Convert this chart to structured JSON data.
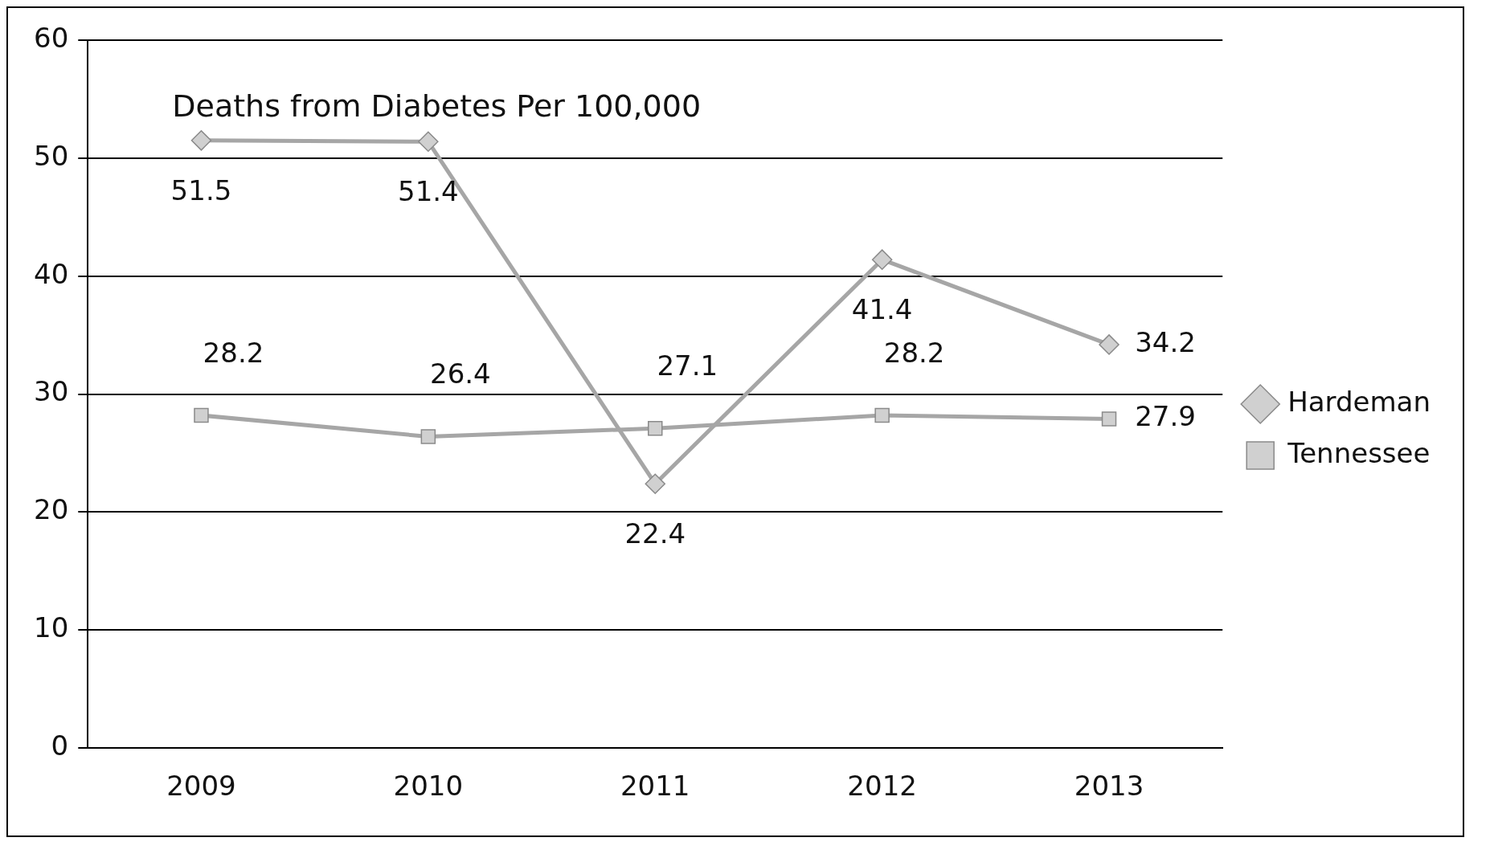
{
  "chart_data": {
    "type": "line",
    "title": "Deaths from Diabetes Per 100,000",
    "categories": [
      "2009",
      "2010",
      "2011",
      "2012",
      "2013"
    ],
    "series": [
      {
        "name": "Hardeman",
        "color": "#a6a6a6",
        "marker": "diamond",
        "values": [
          51.5,
          51.4,
          22.4,
          41.4,
          34.2
        ]
      },
      {
        "name": "Tennessee",
        "color": "#a6a6a6",
        "marker": "square",
        "values": [
          28.2,
          26.4,
          27.1,
          28.2,
          27.9
        ]
      }
    ],
    "ylim": [
      0,
      60
    ],
    "yticks": [
      0,
      10,
      20,
      30,
      40,
      50,
      60
    ],
    "grid": "y",
    "legend": "right",
    "data_labels": true
  }
}
